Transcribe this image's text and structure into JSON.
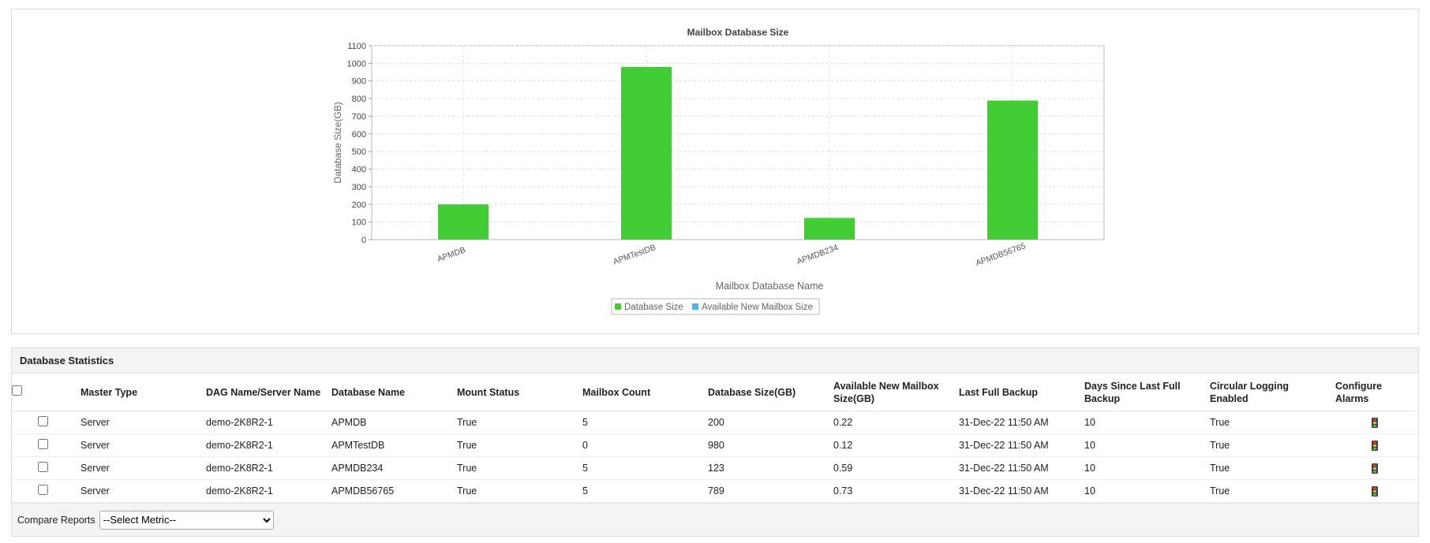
{
  "chart_data": {
    "type": "bar",
    "title": "Mailbox Database Size",
    "xlabel": "Mailbox Database Name",
    "ylabel": "Database Size(GB)",
    "categories": [
      "APMDB",
      "APMTestDB",
      "APMDB234",
      "APMDB56765"
    ],
    "series": [
      {
        "name": "Database Size",
        "values": [
          200,
          980,
          123,
          789
        ],
        "color": "#42cc35"
      },
      {
        "name": "Available New Mailbox Size",
        "values": [
          0.22,
          0.12,
          0.59,
          0.73
        ],
        "color": "#43b8ea"
      }
    ],
    "yticks": [
      0,
      100,
      200,
      300,
      400,
      500,
      600,
      700,
      800,
      900,
      1000,
      1100
    ],
    "ylim": [
      0,
      1100
    ],
    "grid": true,
    "legend": "bottom-center"
  },
  "stats": {
    "title": "Database Statistics",
    "columns": [
      "Master Type",
      "DAG Name/Server Name",
      "Database Name",
      "Mount Status",
      "Mailbox Count",
      "Database Size(GB)",
      "Available New Mailbox Size(GB)",
      "Last Full Backup",
      "Days Since Last Full Backup",
      "Circular Logging Enabled",
      "Configure Alarms"
    ],
    "rows": [
      [
        "Server",
        "demo-2K8R2-1",
        "APMDB",
        "True",
        "5",
        "200",
        "0.22",
        "31-Dec-22 11:50 AM",
        "10",
        "True"
      ],
      [
        "Server",
        "demo-2K8R2-1",
        "APMTestDB",
        "True",
        "0",
        "980",
        "0.12",
        "31-Dec-22 11:50 AM",
        "10",
        "True"
      ],
      [
        "Server",
        "demo-2K8R2-1",
        "APMDB234",
        "True",
        "5",
        "123",
        "0.59",
        "31-Dec-22 11:50 AM",
        "10",
        "True"
      ],
      [
        "Server",
        "demo-2K8R2-1",
        "APMDB56765",
        "True",
        "5",
        "789",
        "0.73",
        "31-Dec-22 11:50 AM",
        "10",
        "True"
      ]
    ],
    "alarm_icon": "traffic-light-icon"
  },
  "footer": {
    "compare_label": "Compare Reports",
    "select_value": "--Select Metric--"
  }
}
